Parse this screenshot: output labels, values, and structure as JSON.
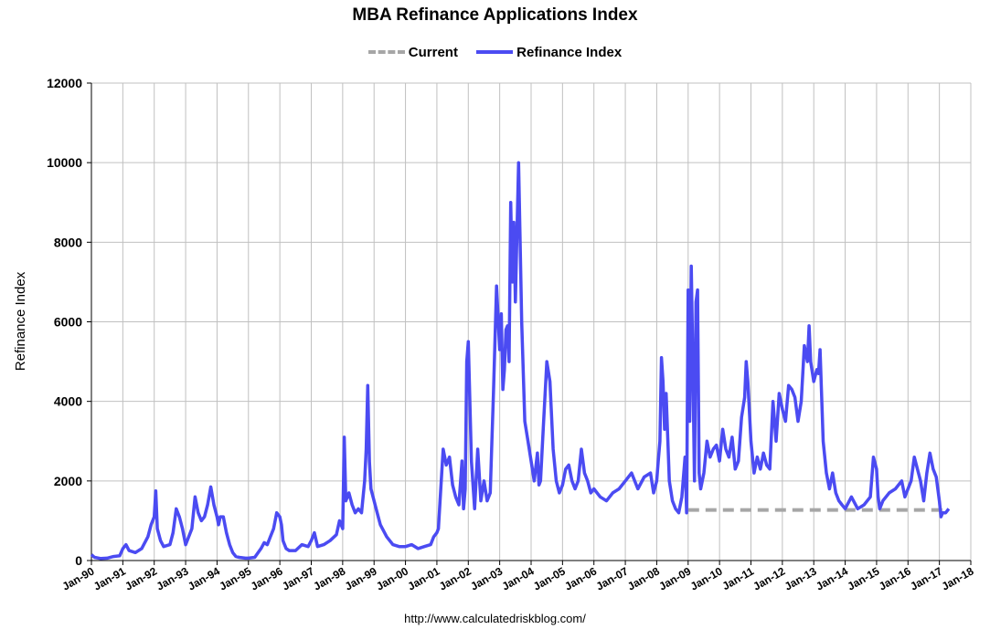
{
  "title": "MBA Refinance Applications Index",
  "source_label": "http://www.calculatedriskblog.com/",
  "chart_data": {
    "type": "line",
    "title": "MBA Refinance Applications Index",
    "xlabel": "",
    "ylabel": "Refinance Index",
    "ylim": [
      0,
      12000
    ],
    "yticks": [
      0,
      2000,
      4000,
      6000,
      8000,
      10000,
      12000
    ],
    "xlim": [
      1990,
      2018
    ],
    "xtick_labels": [
      "Jan-90",
      "Jan-91",
      "Jan-92",
      "Jan-93",
      "Jan-94",
      "Jan-95",
      "Jan-96",
      "Jan-97",
      "Jan-98",
      "Jan-99",
      "Jan-00",
      "Jan-01",
      "Jan-02",
      "Jan-03",
      "Jan-04",
      "Jan-05",
      "Jan-06",
      "Jan-07",
      "Jan-08",
      "Jan-09",
      "Jan-10",
      "Jan-11",
      "Jan-12",
      "Jan-13",
      "Jan-14",
      "Jan-15",
      "Jan-16",
      "Jan-17",
      "Jan-18"
    ],
    "grid": true,
    "legend": "top-center",
    "colors": {
      "current": "#a6a6a6",
      "refinance": "#4b4bf2"
    },
    "series": [
      {
        "name": "Current",
        "style": "dashed",
        "x": [
          2009.0,
          2017.3
        ],
        "y": [
          1270,
          1270
        ]
      },
      {
        "name": "Refinance Index",
        "style": "solid",
        "x": [
          1990.0,
          1990.1,
          1990.3,
          1990.5,
          1990.7,
          1990.9,
          1991.0,
          1991.1,
          1991.2,
          1991.4,
          1991.6,
          1991.8,
          1991.9,
          1992.0,
          1992.05,
          1992.1,
          1992.2,
          1992.3,
          1992.5,
          1992.6,
          1992.7,
          1992.8,
          1992.9,
          1993.0,
          1993.1,
          1993.2,
          1993.3,
          1993.4,
          1993.5,
          1993.6,
          1993.7,
          1993.8,
          1993.9,
          1994.0,
          1994.05,
          1994.1,
          1994.2,
          1994.3,
          1994.4,
          1994.5,
          1994.6,
          1994.7,
          1994.9,
          1995.0,
          1995.2,
          1995.4,
          1995.5,
          1995.6,
          1995.7,
          1995.8,
          1995.9,
          1996.0,
          1996.05,
          1996.1,
          1996.2,
          1996.3,
          1996.5,
          1996.7,
          1996.9,
          1997.0,
          1997.1,
          1997.2,
          1997.4,
          1997.6,
          1997.8,
          1997.9,
          1998.0,
          1998.05,
          1998.1,
          1998.2,
          1998.3,
          1998.4,
          1998.5,
          1998.6,
          1998.7,
          1998.75,
          1998.8,
          1998.85,
          1998.9,
          1999.0,
          1999.1,
          1999.2,
          1999.4,
          1999.6,
          1999.8,
          2000.0,
          2000.2,
          2000.4,
          2000.6,
          2000.8,
          2000.9,
          2001.0,
          2001.05,
          2001.1,
          2001.2,
          2001.3,
          2001.4,
          2001.5,
          2001.6,
          2001.7,
          2001.8,
          2001.85,
          2001.9,
          2001.95,
          2002.0,
          2002.1,
          2002.2,
          2002.3,
          2002.4,
          2002.5,
          2002.6,
          2002.7,
          2002.75,
          2002.8,
          2002.9,
          2003.0,
          2003.05,
          2003.1,
          2003.15,
          2003.2,
          2003.25,
          2003.3,
          2003.35,
          2003.4,
          2003.45,
          2003.5,
          2003.6,
          2003.7,
          2003.8,
          2003.9,
          2004.0,
          2004.1,
          2004.2,
          2004.25,
          2004.3,
          2004.4,
          2004.5,
          2004.6,
          2004.7,
          2004.8,
          2004.9,
          2005.0,
          2005.1,
          2005.2,
          2005.3,
          2005.4,
          2005.5,
          2005.6,
          2005.7,
          2005.8,
          2005.9,
          2006.0,
          2006.2,
          2006.4,
          2006.6,
          2006.8,
          2007.0,
          2007.2,
          2007.4,
          2007.6,
          2007.8,
          2007.9,
          2008.0,
          2008.05,
          2008.1,
          2008.15,
          2008.2,
          2008.25,
          2008.3,
          2008.4,
          2008.5,
          2008.6,
          2008.7,
          2008.8,
          2008.9,
          2008.95,
          2009.0,
          2009.05,
          2009.1,
          2009.15,
          2009.2,
          2009.25,
          2009.3,
          2009.35,
          2009.4,
          2009.5,
          2009.6,
          2009.7,
          2009.8,
          2009.9,
          2010.0,
          2010.1,
          2010.2,
          2010.3,
          2010.4,
          2010.5,
          2010.6,
          2010.7,
          2010.8,
          2010.85,
          2010.9,
          2011.0,
          2011.1,
          2011.2,
          2011.3,
          2011.4,
          2011.5,
          2011.6,
          2011.7,
          2011.8,
          2011.9,
          2012.0,
          2012.1,
          2012.2,
          2012.3,
          2012.4,
          2012.5,
          2012.6,
          2012.7,
          2012.8,
          2012.85,
          2012.9,
          2013.0,
          2013.1,
          2013.15,
          2013.2,
          2013.3,
          2013.4,
          2013.5,
          2013.6,
          2013.7,
          2013.8,
          2013.9,
          2014.0,
          2014.2,
          2014.4,
          2014.6,
          2014.8,
          2014.9,
          2015.0,
          2015.05,
          2015.1,
          2015.2,
          2015.4,
          2015.6,
          2015.8,
          2015.9,
          2016.0,
          2016.1,
          2016.2,
          2016.4,
          2016.5,
          2016.6,
          2016.7,
          2016.8,
          2016.9,
          2017.0,
          2017.05,
          2017.1,
          2017.2,
          2017.3
        ],
        "y": [
          150,
          80,
          50,
          60,
          100,
          120,
          300,
          400,
          250,
          200,
          300,
          600,
          900,
          1100,
          1750,
          800,
          500,
          350,
          400,
          700,
          1300,
          1100,
          800,
          400,
          600,
          800,
          1600,
          1200,
          1000,
          1100,
          1400,
          1850,
          1400,
          1100,
          900,
          1100,
          1100,
          700,
          400,
          200,
          100,
          80,
          60,
          60,
          80,
          300,
          450,
          400,
          600,
          800,
          1200,
          1100,
          900,
          500,
          300,
          250,
          250,
          400,
          350,
          500,
          700,
          350,
          400,
          500,
          650,
          1000,
          800,
          3100,
          1500,
          1700,
          1400,
          1200,
          1300,
          1200,
          2000,
          2800,
          4400,
          2500,
          1800,
          1500,
          1200,
          900,
          600,
          400,
          350,
          350,
          400,
          300,
          350,
          400,
          600,
          700,
          800,
          1500,
          2800,
          2400,
          2600,
          1900,
          1600,
          1400,
          2500,
          1300,
          1800,
          5000,
          5500,
          2500,
          1300,
          2800,
          1500,
          2000,
          1500,
          1700,
          3000,
          4200,
          6900,
          5300,
          6200,
          4300,
          4800,
          5800,
          5900,
          5000,
          9000,
          7000,
          8500,
          6500,
          10000,
          6000,
          3500,
          3000,
          2500,
          2000,
          2700,
          1900,
          2000,
          3500,
          5000,
          4500,
          2800,
          2000,
          1700,
          1900,
          2300,
          2400,
          2000,
          1800,
          2000,
          2800,
          2200,
          2000,
          1700,
          1800,
          1600,
          1500,
          1700,
          1800,
          2000,
          2200,
          1800,
          2100,
          2200,
          1700,
          2000,
          2500,
          3000,
          5100,
          4500,
          3300,
          4200,
          2000,
          1500,
          1300,
          1200,
          1600,
          2600,
          1200,
          6800,
          3500,
          7400,
          5000,
          2000,
          6500,
          6800,
          2200,
          1800,
          2200,
          3000,
          2600,
          2800,
          2900,
          2500,
          3300,
          2800,
          2600,
          3100,
          2300,
          2500,
          3600,
          4100,
          5000,
          4500,
          3000,
          2200,
          2600,
          2300,
          2700,
          2400,
          2300,
          4000,
          3000,
          4200,
          3800,
          3500,
          4400,
          4300,
          4100,
          3500,
          4000,
          5400,
          5000,
          5900,
          5000,
          4500,
          4800,
          4700,
          5300,
          3000,
          2200,
          1800,
          2200,
          1700,
          1500,
          1400,
          1300,
          1600,
          1300,
          1400,
          1600,
          2600,
          2300,
          1600,
          1300,
          1500,
          1700,
          1800,
          2000,
          1600,
          1800,
          2000,
          2600,
          2000,
          1500,
          2200,
          2700,
          2300,
          2100,
          1500,
          1100,
          1200,
          1200,
          1300
        ]
      }
    ]
  }
}
